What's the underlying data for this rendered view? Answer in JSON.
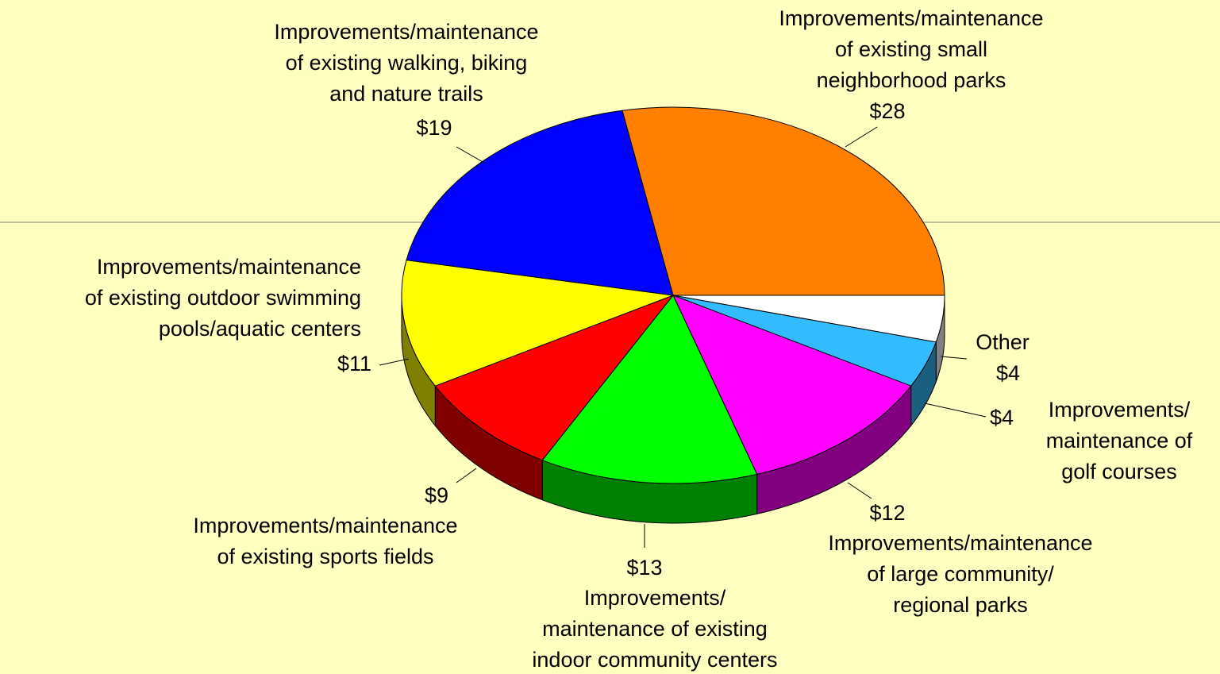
{
  "chart_data": {
    "type": "pie",
    "categories": [
      "Improvements/maintenance\nof existing small\nneighborhood parks",
      "Other",
      "Improvements/\nmaintenance of\ngolf courses",
      "Improvements/maintenance\nof large community/\nregional parks",
      "Improvements/\nmaintenance of existing\nindoor community centers",
      "Improvements/maintenance\nof existing sports fields",
      "Improvements/maintenance\nof existing outdoor swimming\npools/aquatic centers",
      "Improvements/maintenance\nof existing walking, biking\nand nature trails"
    ],
    "values": [
      28,
      4,
      4,
      12,
      13,
      9,
      11,
      19
    ],
    "value_labels": [
      "$28",
      "$4",
      "$4",
      "$12",
      "$13",
      "$9",
      "$11",
      "$19"
    ],
    "colors": [
      "#ff8000",
      "#ffffff",
      "#33bbff",
      "#ff00ff",
      "#00ff00",
      "#ff0000",
      "#ffff00",
      "#0000ff"
    ]
  }
}
